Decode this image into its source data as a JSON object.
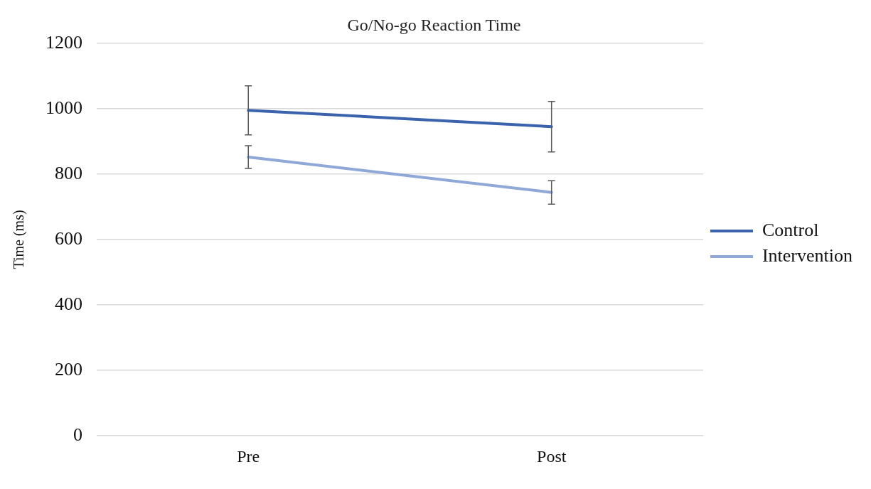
{
  "chart_data": {
    "type": "line",
    "title": "Go/No-go Reaction Time",
    "ylabel": "Time (ms)",
    "categories": [
      "Pre",
      "Post"
    ],
    "series": [
      {
        "name": "Control",
        "color": "#3a62ad",
        "values": [
          995,
          945
        ],
        "errors": [
          75,
          77
        ]
      },
      {
        "name": "Intervention",
        "color": "#8fa8d8",
        "values": [
          852,
          744
        ],
        "errors": [
          35,
          36
        ]
      }
    ],
    "ylim": [
      0,
      1200
    ],
    "yticks": [
      0,
      200,
      400,
      600,
      800,
      1000,
      1200
    ],
    "grid": "y",
    "legend": "right",
    "marker": "none",
    "line_style": "solid"
  }
}
